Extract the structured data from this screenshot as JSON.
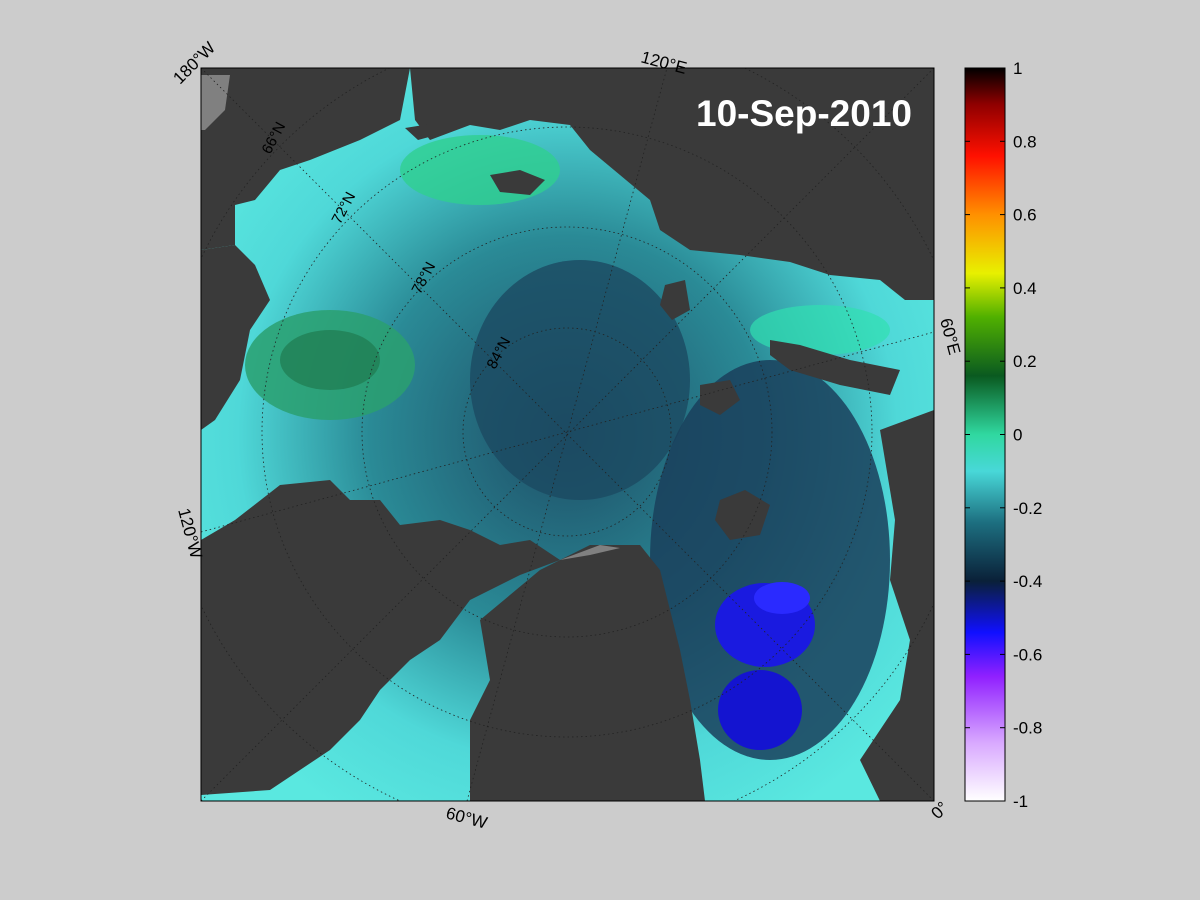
{
  "map": {
    "date": "10-Sep-2010",
    "longitude_labels": {
      "lon_180w": "180°W",
      "lon_120e": "120°E",
      "lon_60e": "60°E",
      "lon_120w": "120°W",
      "lon_60w": "60°W",
      "lon_0": "0°"
    },
    "latitude_labels": {
      "lat_66n": "66°N",
      "lat_72n": "72°N",
      "lat_78n": "78°N",
      "lat_84n": "84°N"
    },
    "colors": {
      "background": "#cccccc",
      "land": "#3a3a3a",
      "land_mask": "#808080"
    }
  },
  "colorbar": {
    "ticks": [
      "1",
      "0.8",
      "0.6",
      "0.4",
      "0.2",
      "0",
      "-0.2",
      "-0.4",
      "-0.6",
      "-0.8",
      "-1"
    ],
    "range": [
      -1,
      1
    ],
    "color_stops": [
      "#ffffff",
      "#c080ff",
      "#8000ff",
      "#0000ff",
      "#0a2a4a",
      "#20a0a8",
      "#60f0e8",
      "#20d090",
      "#107010",
      "#60c000",
      "#f0f000",
      "#ff8000",
      "#ff0000",
      "#c00000",
      "#000000"
    ]
  }
}
